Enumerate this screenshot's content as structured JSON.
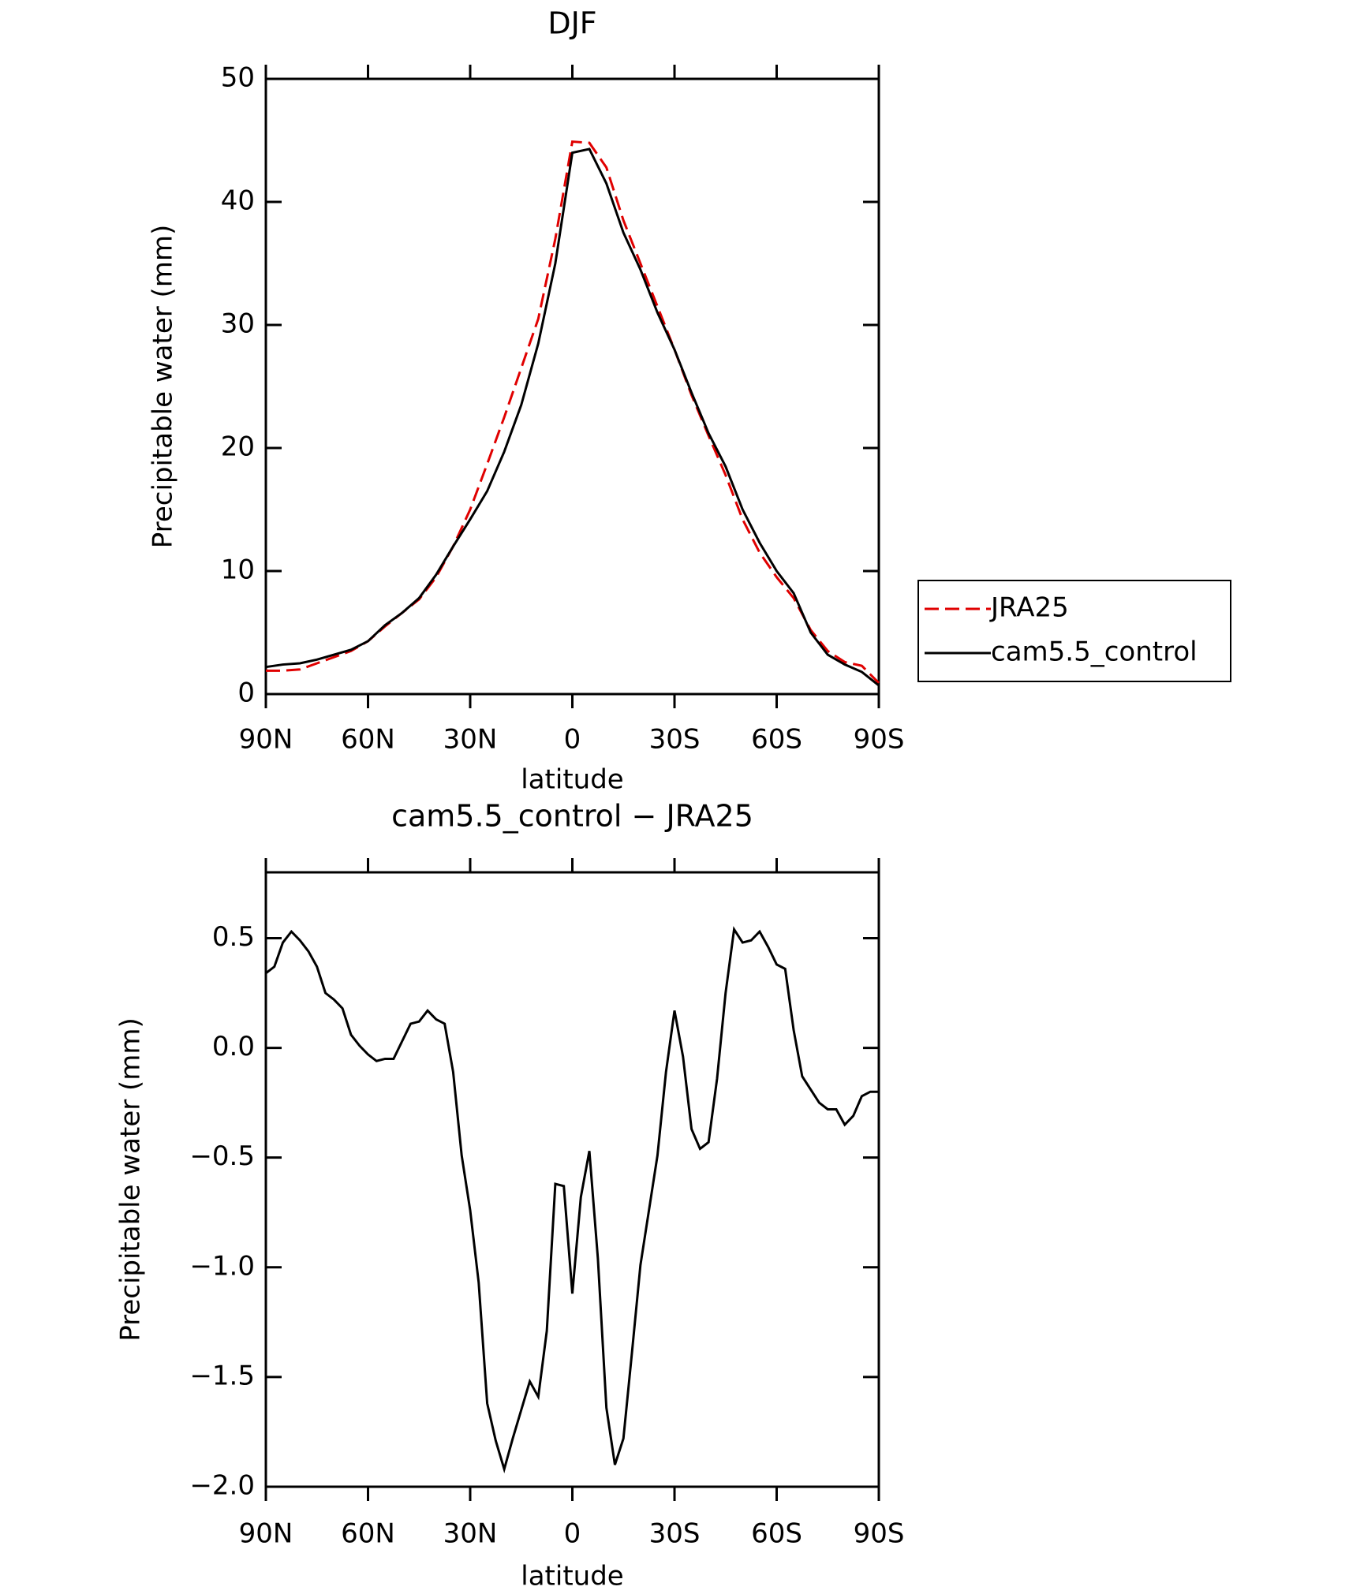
{
  "chart_data": [
    {
      "type": "line",
      "title": "DJF",
      "x_label": "latitude",
      "y_label": "Precipitable water (mm)",
      "x": [
        90,
        85,
        80,
        75,
        70,
        65,
        60,
        55,
        50,
        45,
        40,
        35,
        30,
        25,
        20,
        15,
        10,
        5,
        0,
        -5,
        -10,
        -15,
        -20,
        -25,
        -30,
        -35,
        -40,
        -45,
        -50,
        -55,
        -60,
        -65,
        -70,
        -75,
        -80,
        -85,
        -90
      ],
      "series": [
        {
          "name": "JRA25",
          "color": "#e00000",
          "dash": true,
          "values": [
            1.9,
            1.9,
            2.0,
            2.5,
            3.0,
            3.5,
            4.3,
            5.5,
            6.6,
            7.7,
            9.5,
            12.0,
            15.0,
            18.7,
            22.5,
            26.5,
            30.5,
            37.0,
            44.9,
            44.8,
            42.8,
            38.5,
            35.0,
            31.5,
            28.0,
            24.3,
            21.0,
            17.8,
            14.2,
            11.5,
            9.5,
            7.8,
            5.2,
            3.5,
            2.6,
            2.3,
            0.9
          ]
        },
        {
          "name": "cam5.5_control",
          "color": "#000000",
          "dash": false,
          "values": [
            2.2,
            2.4,
            2.5,
            2.8,
            3.2,
            3.6,
            4.3,
            5.6,
            6.6,
            7.8,
            9.7,
            12.0,
            14.2,
            16.5,
            19.7,
            23.5,
            28.5,
            35.0,
            44.0,
            44.3,
            41.5,
            37.5,
            34.5,
            31.0,
            28.0,
            24.5,
            21.2,
            18.5,
            15.0,
            12.3,
            10.0,
            8.2,
            5.0,
            3.2,
            2.4,
            1.8,
            0.7
          ]
        }
      ],
      "xlim": [
        90,
        -90
      ],
      "xticks": [
        {
          "value": 90,
          "label": "90N"
        },
        {
          "value": 60,
          "label": "60N"
        },
        {
          "value": 30,
          "label": "30N"
        },
        0,
        {
          "value": -30,
          "label": "30S"
        },
        {
          "value": -60,
          "label": "60S"
        },
        {
          "value": -90,
          "label": "90S"
        }
      ],
      "ylim": [
        0,
        50
      ],
      "yticks": [
        0,
        10,
        20,
        30,
        40,
        50
      ],
      "legend": "right"
    },
    {
      "type": "line",
      "title": "cam5.5_control − JRA25",
      "x_label": "latitude",
      "y_label": "Precipitable water (mm)",
      "x": [
        90,
        87.5,
        85,
        82.5,
        80,
        77.5,
        75,
        72.5,
        70,
        67.5,
        65,
        62.5,
        60,
        57.5,
        55,
        52.5,
        50,
        47.5,
        45,
        42.5,
        40,
        37.5,
        35,
        32.5,
        30,
        27.5,
        25,
        22.5,
        20,
        17.5,
        15,
        12.5,
        10,
        7.5,
        5,
        2.5,
        0,
        -2.5,
        -5,
        -7.5,
        -10,
        -12.5,
        -15,
        -17.5,
        -20,
        -22.5,
        -25,
        -27.5,
        -30,
        -32.5,
        -35,
        -37.5,
        -40,
        -42.5,
        -45,
        -47.5,
        -50,
        -52.5,
        -55,
        -57.5,
        -60,
        -62.5,
        -65,
        -67.5,
        -70,
        -72.5,
        -75,
        -77.5,
        -80,
        -82.5,
        -85,
        -87.5,
        -90
      ],
      "series": [
        {
          "name": "cam5.5_control − JRA25",
          "color": "#000000",
          "dash": false,
          "values": [
            0.34,
            0.37,
            0.48,
            0.53,
            0.49,
            0.44,
            0.37,
            0.25,
            0.22,
            0.18,
            0.06,
            0.01,
            -0.03,
            -0.06,
            -0.05,
            -0.05,
            0.03,
            0.11,
            0.12,
            0.17,
            0.13,
            0.11,
            -0.11,
            -0.49,
            -0.74,
            -1.07,
            -1.62,
            -1.79,
            -1.92,
            -1.78,
            -1.65,
            -1.52,
            -1.59,
            -1.29,
            -0.62,
            -0.63,
            -1.12,
            -0.68,
            -0.47,
            -0.96,
            -1.64,
            -1.9,
            -1.78,
            -1.39,
            -0.99,
            -0.74,
            -0.49,
            -0.11,
            0.17,
            -0.04,
            -0.37,
            -0.46,
            -0.43,
            -0.14,
            0.25,
            0.54,
            0.48,
            0.49,
            0.53,
            0.46,
            0.38,
            0.36,
            0.08,
            -0.13,
            -0.19,
            -0.25,
            -0.28,
            -0.28,
            -0.35,
            -0.31,
            -0.22,
            -0.2,
            -0.2
          ]
        }
      ],
      "xlim": [
        90,
        -90
      ],
      "xticks": [
        {
          "value": 90,
          "label": "90N"
        },
        {
          "value": 60,
          "label": "60N"
        },
        {
          "value": 30,
          "label": "30N"
        },
        0,
        {
          "value": -30,
          "label": "30S"
        },
        {
          "value": -60,
          "label": "60S"
        },
        {
          "value": -90,
          "label": "90S"
        }
      ],
      "ylim": [
        -2.0,
        0.8
      ],
      "yticks": [
        {
          "value": -2.0,
          "label": "−2.0"
        },
        {
          "value": -1.5,
          "label": "−1.5"
        },
        {
          "value": -1.0,
          "label": "−1.0"
        },
        {
          "value": -0.5,
          "label": "−0.5"
        },
        {
          "value": 0.0,
          "label": "0.0"
        },
        0.5
      ]
    }
  ]
}
